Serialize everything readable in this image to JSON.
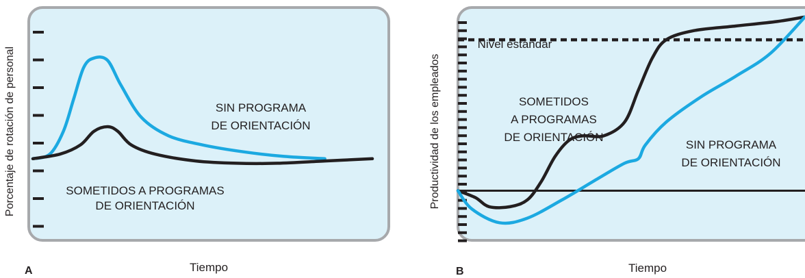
{
  "colors": {
    "panel_fill": "#dcf1f9",
    "panel_border": "#a7a9ac",
    "blue_line": "#1ca9e1",
    "black_line": "#231f20"
  },
  "chart_data": [
    {
      "type": "line",
      "panel_label": "A",
      "xlabel": "Tiempo",
      "ylabel": "Porcentaje de rotación de personal",
      "xlim": [
        0,
        100
      ],
      "ylim": [
        0,
        100
      ],
      "grid": false,
      "y_tick_count": 8,
      "series": [
        {
          "name": "SIN PROGRAMA DE ORIENTACIÓN",
          "color": "#1ca9e1",
          "labels": [
            "SIN PROGRAMA",
            "DE ORIENTACIÓN"
          ],
          "points": [
            [
              0,
              36
            ],
            [
              5,
              38
            ],
            [
              9,
              48
            ],
            [
              12,
              62
            ],
            [
              15,
              76
            ],
            [
              18,
              80
            ],
            [
              22,
              79
            ],
            [
              26,
              68
            ],
            [
              32,
              54
            ],
            [
              40,
              46
            ],
            [
              50,
              42
            ],
            [
              62,
              39
            ],
            [
              74,
              37
            ],
            [
              86,
              36
            ]
          ]
        },
        {
          "name": "SOMETIDOS A PROGRAMAS DE ORIENTACIÓN",
          "color": "#231f20",
          "labels": [
            "SOMETIDOS A PROGRAMAS",
            "DE ORIENTACIÓN"
          ],
          "points": [
            [
              0,
              36
            ],
            [
              8,
              38
            ],
            [
              14,
              42
            ],
            [
              18,
              48
            ],
            [
              22,
              50
            ],
            [
              25,
              48
            ],
            [
              29,
              42
            ],
            [
              36,
              38
            ],
            [
              48,
              35
            ],
            [
              60,
              34
            ],
            [
              72,
              34
            ],
            [
              86,
              35
            ],
            [
              100,
              36
            ]
          ]
        }
      ]
    },
    {
      "type": "line",
      "panel_label": "B",
      "xlabel": "Tiempo",
      "ylabel": "Productividad de los empleados",
      "xlim": [
        0,
        100
      ],
      "ylim": [
        0,
        100
      ],
      "grid": false,
      "y_tick_count": 28,
      "reference_lines": [
        {
          "label": "Nivel estándar",
          "y": 88,
          "style": "dashed"
        },
        {
          "y": 22,
          "style": "solid"
        }
      ],
      "series": [
        {
          "name": "SOMETIDOS A PROGRAMAS DE ORIENTACIÓN",
          "color": "#231f20",
          "labels": [
            "SOMETIDOS",
            "A PROGRAMAS",
            "DE ORIENTACIÓN"
          ],
          "points": [
            [
              0,
              22
            ],
            [
              5,
              19
            ],
            [
              9,
              15
            ],
            [
              15,
              15
            ],
            [
              20,
              18
            ],
            [
              24,
              26
            ],
            [
              28,
              37
            ],
            [
              32,
              44
            ],
            [
              36,
              46
            ],
            [
              42,
              46
            ],
            [
              48,
              52
            ],
            [
              52,
              66
            ],
            [
              56,
              80
            ],
            [
              60,
              88
            ],
            [
              68,
              92
            ],
            [
              80,
              94
            ],
            [
              92,
              96
            ],
            [
              100,
              98
            ]
          ]
        },
        {
          "name": "SIN PROGRAMA DE ORIENTACIÓN",
          "color": "#1ca9e1",
          "labels": [
            "SIN PROGRAMA",
            "DE ORIENTACIÓN"
          ],
          "points": [
            [
              0,
              22
            ],
            [
              4,
              14
            ],
            [
              12,
              8
            ],
            [
              20,
              10
            ],
            [
              30,
              18
            ],
            [
              40,
              27
            ],
            [
              48,
              34
            ],
            [
              52,
              36
            ],
            [
              54,
              42
            ],
            [
              60,
              52
            ],
            [
              70,
              63
            ],
            [
              80,
              72
            ],
            [
              90,
              82
            ],
            [
              100,
              98
            ]
          ]
        }
      ]
    }
  ]
}
